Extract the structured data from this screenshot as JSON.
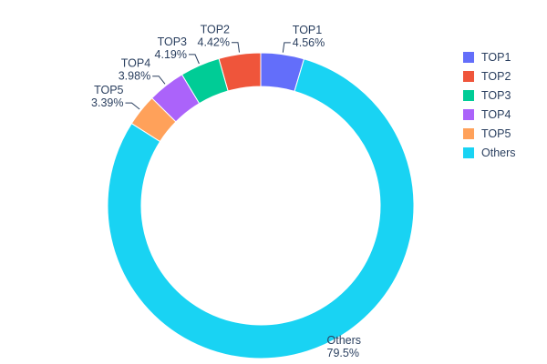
{
  "chart_data": {
    "type": "pie",
    "subtype": "donut",
    "labels": [
      "TOP1",
      "TOP2",
      "TOP3",
      "TOP4",
      "TOP5",
      "Others"
    ],
    "values": [
      4.56,
      4.42,
      4.19,
      3.98,
      3.39,
      79.5
    ],
    "percent_labels": [
      "4.56%",
      "4.42%",
      "4.19%",
      "3.98%",
      "3.39%",
      "79.5%"
    ],
    "colors": [
      "#636EFA",
      "#EF553B",
      "#00CC96",
      "#AB63FA",
      "#FFA15A",
      "#19D3F3"
    ],
    "hole": 0.78,
    "text_color": "#2a3f5f",
    "background_color": "#ffffff",
    "legend": {
      "position": "right",
      "entries": [
        "TOP1",
        "TOP2",
        "TOP3",
        "TOP4",
        "TOP5",
        "Others"
      ]
    }
  }
}
